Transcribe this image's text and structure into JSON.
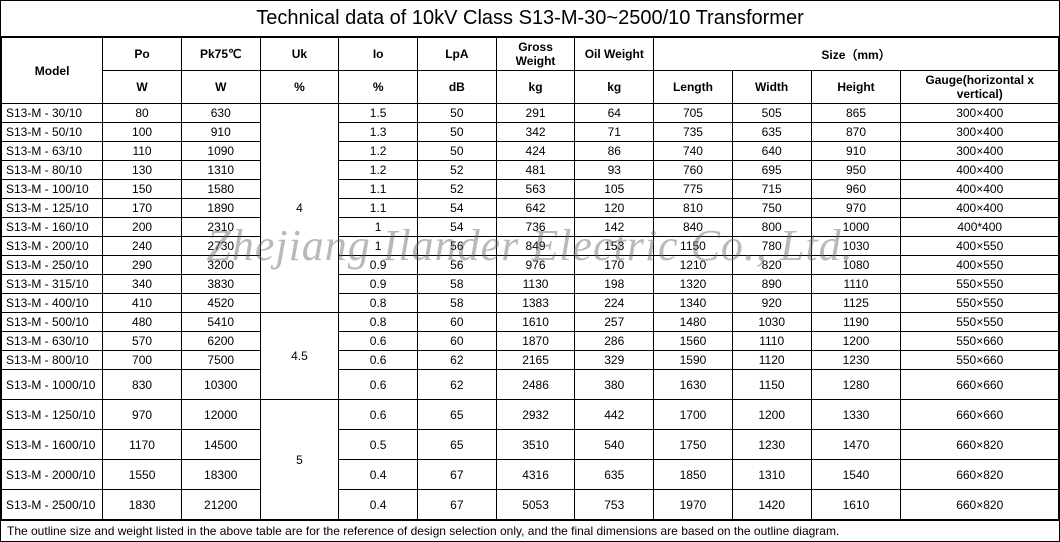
{
  "title": "Technical data of 10kV Class S13-M-30~2500/10 Transformer",
  "watermark": "Zhejiang Ilander Electric Co., Ltd.",
  "header": {
    "model": "Model",
    "po": "Po",
    "po_unit": "W",
    "pk": "Pk75℃",
    "pk_unit": "W",
    "uk": "Uk",
    "uk_unit": "%",
    "io": "Io",
    "io_unit": "%",
    "lpa": "LpA",
    "lpa_unit": "dB",
    "gross": "Gross Weight",
    "gross_unit": "kg",
    "oil": "Oil Weight",
    "oil_unit": "kg",
    "size": "Size（mm）",
    "length": "Length",
    "width": "Width",
    "height": "Height",
    "gauge": "Gauge(horizontal x vertical)"
  },
  "uk_groups": [
    {
      "value": "4",
      "span": 11
    },
    {
      "value": "4.5",
      "span": 4
    },
    {
      "value": "5",
      "span": 4
    }
  ],
  "rows": [
    {
      "model": "S13-M - 30/10",
      "po": "80",
      "pk": "630",
      "io": "1.5",
      "lpa": "50",
      "gross": "291",
      "oil": "64",
      "l": "705",
      "w": "505",
      "h": "865",
      "g": "300×400"
    },
    {
      "model": "S13-M - 50/10",
      "po": "100",
      "pk": "910",
      "io": "1.3",
      "lpa": "50",
      "gross": "342",
      "oil": "71",
      "l": "735",
      "w": "635",
      "h": "870",
      "g": "300×400"
    },
    {
      "model": "S13-M - 63/10",
      "po": "110",
      "pk": "1090",
      "io": "1.2",
      "lpa": "50",
      "gross": "424",
      "oil": "86",
      "l": "740",
      "w": "640",
      "h": "910",
      "g": "300×400"
    },
    {
      "model": "S13-M - 80/10",
      "po": "130",
      "pk": "1310",
      "io": "1.2",
      "lpa": "52",
      "gross": "481",
      "oil": "93",
      "l": "760",
      "w": "695",
      "h": "950",
      "g": "400×400"
    },
    {
      "model": "S13-M - 100/10",
      "po": "150",
      "pk": "1580",
      "io": "1.1",
      "lpa": "52",
      "gross": "563",
      "oil": "105",
      "l": "775",
      "w": "715",
      "h": "960",
      "g": "400×400"
    },
    {
      "model": "S13-M - 125/10",
      "po": "170",
      "pk": "1890",
      "io": "1.1",
      "lpa": "54",
      "gross": "642",
      "oil": "120",
      "l": "810",
      "w": "750",
      "h": "970",
      "g": "400×400"
    },
    {
      "model": "S13-M - 160/10",
      "po": "200",
      "pk": "2310",
      "io": "1",
      "lpa": "54",
      "gross": "736",
      "oil": "142",
      "l": "840",
      "w": "800",
      "h": "1000",
      "g": "400*400"
    },
    {
      "model": "S13-M - 200/10",
      "po": "240",
      "pk": "2730",
      "io": "1",
      "lpa": "56",
      "gross": "849",
      "oil": "153",
      "l": "1150",
      "w": "780",
      "h": "1030",
      "g": "400×550"
    },
    {
      "model": "S13-M - 250/10",
      "po": "290",
      "pk": "3200",
      "io": "0.9",
      "lpa": "56",
      "gross": "976",
      "oil": "170",
      "l": "1210",
      "w": "820",
      "h": "1080",
      "g": "400×550"
    },
    {
      "model": "S13-M - 315/10",
      "po": "340",
      "pk": "3830",
      "io": "0.9",
      "lpa": "58",
      "gross": "1130",
      "oil": "198",
      "l": "1320",
      "w": "890",
      "h": "1110",
      "g": "550×550"
    },
    {
      "model": "S13-M - 400/10",
      "po": "410",
      "pk": "4520",
      "io": "0.8",
      "lpa": "58",
      "gross": "1383",
      "oil": "224",
      "l": "1340",
      "w": "920",
      "h": "1125",
      "g": "550×550"
    },
    {
      "model": "S13-M - 500/10",
      "po": "480",
      "pk": "5410",
      "io": "0.8",
      "lpa": "60",
      "gross": "1610",
      "oil": "257",
      "l": "1480",
      "w": "1030",
      "h": "1190",
      "g": "550×550"
    },
    {
      "model": "S13-M - 630/10",
      "po": "570",
      "pk": "6200",
      "io": "0.6",
      "lpa": "60",
      "gross": "1870",
      "oil": "286",
      "l": "1560",
      "w": "1110",
      "h": "1200",
      "g": "550×660"
    },
    {
      "model": "S13-M - 800/10",
      "po": "700",
      "pk": "7500",
      "io": "0.6",
      "lpa": "62",
      "gross": "2165",
      "oil": "329",
      "l": "1590",
      "w": "1120",
      "h": "1230",
      "g": "550×660"
    },
    {
      "model": "S13-M - 1000/10",
      "po": "830",
      "pk": "10300",
      "io": "0.6",
      "lpa": "62",
      "gross": "2486",
      "oil": "380",
      "l": "1630",
      "w": "1150",
      "h": "1280",
      "g": "660×660",
      "tall": true
    },
    {
      "model": "S13-M - 1250/10",
      "po": "970",
      "pk": "12000",
      "io": "0.6",
      "lpa": "65",
      "gross": "2932",
      "oil": "442",
      "l": "1700",
      "w": "1200",
      "h": "1330",
      "g": "660×660",
      "tall": true
    },
    {
      "model": "S13-M - 1600/10",
      "po": "1170",
      "pk": "14500",
      "io": "0.5",
      "lpa": "65",
      "gross": "3510",
      "oil": "540",
      "l": "1750",
      "w": "1230",
      "h": "1470",
      "g": "660×820",
      "tall": true
    },
    {
      "model": "S13-M - 2000/10",
      "po": "1550",
      "pk": "18300",
      "io": "0.4",
      "lpa": "67",
      "gross": "4316",
      "oil": "635",
      "l": "1850",
      "w": "1310",
      "h": "1540",
      "g": "660×820",
      "tall": true
    },
    {
      "model": "S13-M - 2500/10",
      "po": "1830",
      "pk": "21200",
      "io": "0.4",
      "lpa": "67",
      "gross": "5053",
      "oil": "753",
      "l": "1970",
      "w": "1420",
      "h": "1610",
      "g": "660×820",
      "tall": true
    }
  ],
  "footnote": "The outline size and weight listed in the above table are for the reference of design selection only, and the final dimensions are based on the outline diagram."
}
